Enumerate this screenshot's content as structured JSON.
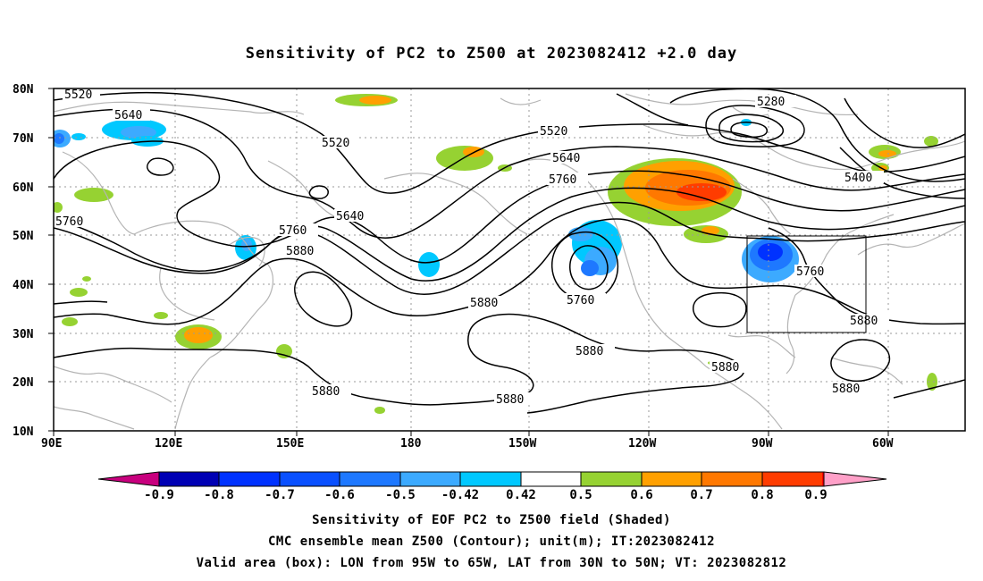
{
  "title": "Sensitivity of PC2 to Z500 at 2023082412 +2.0 day",
  "map": {
    "lat_labels": [
      "80N",
      "70N",
      "60N",
      "50N",
      "40N",
      "30N",
      "20N",
      "10N"
    ],
    "lon_labels": [
      "90E",
      "120E",
      "150E",
      "180",
      "150W",
      "120W",
      "90W",
      "60W"
    ],
    "contour_labels": [
      "5520",
      "5640",
      "5520",
      "5760",
      "5640",
      "5760",
      "5880",
      "5520",
      "5640",
      "5760",
      "5280",
      "5400",
      "5880",
      "5760",
      "5760",
      "5880",
      "5880",
      "5880",
      "5880",
      "5880",
      "5880",
      "5880"
    ],
    "contour_color": "#000000",
    "coast_color": "#b4b4b4",
    "grid_style": "dotted"
  },
  "colorbar": {
    "labels": [
      "-0.9",
      "-0.8",
      "-0.7",
      "-0.6",
      "-0.5",
      "-0.42",
      "0.42",
      "0.5",
      "0.6",
      "0.7",
      "0.8",
      "0.9"
    ],
    "colors": [
      "#c8007e",
      "#0000b4",
      "#0032ff",
      "#0a50ff",
      "#1e78ff",
      "#3caaff",
      "#00c8ff",
      "#ffffff",
      "#96d232",
      "#ffa000",
      "#ff7800",
      "#ff3c00",
      "#ff0000",
      "#ffa0c8"
    ]
  },
  "captions": {
    "line1": "Sensitivity of EOF PC2 to Z500 field (Shaded)",
    "line2": "CMC ensemble mean Z500 (Contour); unit(m); IT:2023082412",
    "line3": "Valid area (box): LON from 95W to 65W, LAT from 30N to 50N; VT: 2023082812"
  }
}
